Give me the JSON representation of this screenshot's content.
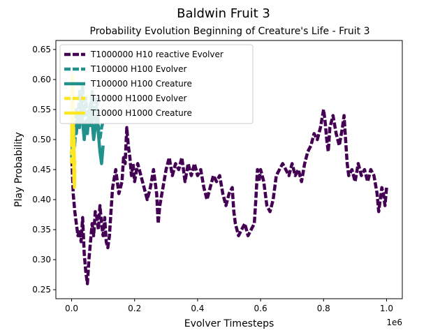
{
  "chart_data": {
    "type": "line",
    "suptitle": "Baldwin Fruit 3",
    "title": "Probability Evolution Beginning of Creature's Life - Fruit 3",
    "xlabel": "Evolver Timesteps",
    "ylabel": "Play Probability",
    "x_offset_label": "1e6",
    "xlim": [
      -0.05,
      1.05
    ],
    "ylim": [
      0.235,
      0.665
    ],
    "x_ticks": [
      0.0,
      0.2,
      0.4,
      0.6,
      0.8,
      1.0
    ],
    "x_tick_labels": [
      "0.0",
      "0.2",
      "0.4",
      "0.6",
      "0.8",
      "1.0"
    ],
    "y_ticks": [
      0.25,
      0.3,
      0.35,
      0.4,
      0.45,
      0.5,
      0.55,
      0.6,
      0.65
    ],
    "y_tick_labels": [
      "0.25",
      "0.30",
      "0.35",
      "0.40",
      "0.45",
      "0.50",
      "0.55",
      "0.60",
      "0.65"
    ],
    "grid": false,
    "legend_position": "upper-left",
    "series": [
      {
        "name": "T1000000 H10 reactive Evolver",
        "color": "#440154",
        "style": "dashed",
        "points": [
          [
            0.0,
            0.48
          ],
          [
            0.005,
            0.41
          ],
          [
            0.01,
            0.38
          ],
          [
            0.015,
            0.36
          ],
          [
            0.02,
            0.34
          ],
          [
            0.025,
            0.35
          ],
          [
            0.03,
            0.33
          ],
          [
            0.035,
            0.37
          ],
          [
            0.04,
            0.31
          ],
          [
            0.045,
            0.28
          ],
          [
            0.05,
            0.26
          ],
          [
            0.055,
            0.3
          ],
          [
            0.06,
            0.33
          ],
          [
            0.065,
            0.36
          ],
          [
            0.07,
            0.34
          ],
          [
            0.075,
            0.38
          ],
          [
            0.08,
            0.37
          ],
          [
            0.085,
            0.35
          ],
          [
            0.09,
            0.39
          ],
          [
            0.095,
            0.36
          ],
          [
            0.1,
            0.34
          ],
          [
            0.105,
            0.37
          ],
          [
            0.11,
            0.33
          ],
          [
            0.115,
            0.32
          ],
          [
            0.12,
            0.34
          ],
          [
            0.125,
            0.38
          ],
          [
            0.13,
            0.42
          ],
          [
            0.14,
            0.45
          ],
          [
            0.15,
            0.41
          ],
          [
            0.16,
            0.43
          ],
          [
            0.165,
            0.47
          ],
          [
            0.17,
            0.46
          ],
          [
            0.175,
            0.52
          ],
          [
            0.18,
            0.49
          ],
          [
            0.185,
            0.47
          ],
          [
            0.19,
            0.44
          ],
          [
            0.195,
            0.46
          ],
          [
            0.2,
            0.43
          ],
          [
            0.21,
            0.46
          ],
          [
            0.22,
            0.44
          ],
          [
            0.23,
            0.42
          ],
          [
            0.24,
            0.4
          ],
          [
            0.25,
            0.42
          ],
          [
            0.26,
            0.45
          ],
          [
            0.27,
            0.41
          ],
          [
            0.275,
            0.36
          ],
          [
            0.28,
            0.39
          ],
          [
            0.29,
            0.42
          ],
          [
            0.3,
            0.45
          ],
          [
            0.31,
            0.47
          ],
          [
            0.32,
            0.44
          ],
          [
            0.33,
            0.46
          ],
          [
            0.34,
            0.45
          ],
          [
            0.35,
            0.47
          ],
          [
            0.36,
            0.43
          ],
          [
            0.37,
            0.46
          ],
          [
            0.38,
            0.44
          ],
          [
            0.39,
            0.46
          ],
          [
            0.4,
            0.44
          ],
          [
            0.41,
            0.45
          ],
          [
            0.42,
            0.42
          ],
          [
            0.43,
            0.4
          ],
          [
            0.44,
            0.42
          ],
          [
            0.45,
            0.44
          ],
          [
            0.46,
            0.43
          ],
          [
            0.47,
            0.44
          ],
          [
            0.48,
            0.41
          ],
          [
            0.49,
            0.39
          ],
          [
            0.5,
            0.41
          ],
          [
            0.51,
            0.42
          ],
          [
            0.515,
            0.38
          ],
          [
            0.52,
            0.36
          ],
          [
            0.53,
            0.34
          ],
          [
            0.54,
            0.35
          ],
          [
            0.55,
            0.36
          ],
          [
            0.56,
            0.34
          ],
          [
            0.57,
            0.35
          ],
          [
            0.58,
            0.36
          ],
          [
            0.585,
            0.4
          ],
          [
            0.59,
            0.45
          ],
          [
            0.595,
            0.43
          ],
          [
            0.6,
            0.45
          ],
          [
            0.61,
            0.43
          ],
          [
            0.62,
            0.39
          ],
          [
            0.63,
            0.38
          ],
          [
            0.64,
            0.4
          ],
          [
            0.65,
            0.44
          ],
          [
            0.66,
            0.45
          ],
          [
            0.67,
            0.46
          ],
          [
            0.68,
            0.45
          ],
          [
            0.69,
            0.44
          ],
          [
            0.7,
            0.46
          ],
          [
            0.71,
            0.44
          ],
          [
            0.72,
            0.45
          ],
          [
            0.73,
            0.43
          ],
          [
            0.74,
            0.46
          ],
          [
            0.75,
            0.48
          ],
          [
            0.76,
            0.49
          ],
          [
            0.77,
            0.51
          ],
          [
            0.78,
            0.5
          ],
          [
            0.79,
            0.52
          ],
          [
            0.8,
            0.55
          ],
          [
            0.805,
            0.53
          ],
          [
            0.81,
            0.5
          ],
          [
            0.815,
            0.48
          ],
          [
            0.82,
            0.52
          ],
          [
            0.83,
            0.54
          ],
          [
            0.84,
            0.51
          ],
          [
            0.85,
            0.49
          ],
          [
            0.86,
            0.52
          ],
          [
            0.865,
            0.54
          ],
          [
            0.87,
            0.5
          ],
          [
            0.875,
            0.46
          ],
          [
            0.88,
            0.44
          ],
          [
            0.89,
            0.45
          ],
          [
            0.9,
            0.43
          ],
          [
            0.91,
            0.46
          ],
          [
            0.92,
            0.44
          ],
          [
            0.93,
            0.45
          ],
          [
            0.94,
            0.43
          ],
          [
            0.95,
            0.45
          ],
          [
            0.96,
            0.44
          ],
          [
            0.97,
            0.41
          ],
          [
            0.975,
            0.38
          ],
          [
            0.98,
            0.4
          ],
          [
            0.985,
            0.42
          ],
          [
            0.99,
            0.41
          ],
          [
            0.995,
            0.39
          ],
          [
            1.0,
            0.42
          ]
        ]
      },
      {
        "name": "T100000 H100 Evolver",
        "color": "#21918c",
        "style": "dashed",
        "points": [
          [
            0.0,
            0.47
          ],
          [
            0.005,
            0.52
          ],
          [
            0.01,
            0.49
          ],
          [
            0.015,
            0.55
          ],
          [
            0.02,
            0.53
          ],
          [
            0.025,
            0.58
          ],
          [
            0.03,
            0.56
          ],
          [
            0.035,
            0.59
          ],
          [
            0.04,
            0.54
          ],
          [
            0.045,
            0.57
          ],
          [
            0.05,
            0.53
          ],
          [
            0.055,
            0.55
          ],
          [
            0.06,
            0.52
          ],
          [
            0.065,
            0.58
          ],
          [
            0.07,
            0.55
          ],
          [
            0.075,
            0.53
          ],
          [
            0.08,
            0.57
          ],
          [
            0.085,
            0.52
          ],
          [
            0.09,
            0.5
          ],
          [
            0.095,
            0.52
          ],
          [
            0.1,
            0.53
          ]
        ]
      },
      {
        "name": "T100000 H100 Creature",
        "color": "#21918c",
        "style": "solid",
        "points": [
          [
            0.0,
            0.46
          ],
          [
            0.005,
            0.5
          ],
          [
            0.01,
            0.52
          ],
          [
            0.015,
            0.51
          ],
          [
            0.02,
            0.54
          ],
          [
            0.025,
            0.52
          ],
          [
            0.03,
            0.57
          ],
          [
            0.035,
            0.53
          ],
          [
            0.04,
            0.5
          ],
          [
            0.045,
            0.53
          ],
          [
            0.05,
            0.51
          ],
          [
            0.055,
            0.54
          ],
          [
            0.06,
            0.56
          ],
          [
            0.065,
            0.53
          ],
          [
            0.07,
            0.5
          ],
          [
            0.075,
            0.52
          ],
          [
            0.08,
            0.54
          ],
          [
            0.085,
            0.51
          ],
          [
            0.09,
            0.48
          ],
          [
            0.095,
            0.46
          ],
          [
            0.1,
            0.49
          ]
        ]
      },
      {
        "name": "T10000 H1000 Evolver",
        "color": "#fde725",
        "style": "dashed",
        "points": [
          [
            0.0,
            0.46
          ],
          [
            0.001,
            0.55
          ],
          [
            0.002,
            0.61
          ],
          [
            0.003,
            0.52
          ],
          [
            0.004,
            0.58
          ],
          [
            0.005,
            0.48
          ],
          [
            0.006,
            0.53
          ],
          [
            0.007,
            0.45
          ],
          [
            0.008,
            0.5
          ],
          [
            0.009,
            0.44
          ],
          [
            0.01,
            0.47
          ]
        ]
      },
      {
        "name": "T10000 H1000 Creature",
        "color": "#fde725",
        "style": "solid",
        "points": [
          [
            0.0,
            0.49
          ],
          [
            0.001,
            0.53
          ],
          [
            0.002,
            0.57
          ],
          [
            0.003,
            0.51
          ],
          [
            0.004,
            0.55
          ],
          [
            0.005,
            0.47
          ],
          [
            0.006,
            0.52
          ],
          [
            0.007,
            0.43
          ],
          [
            0.008,
            0.48
          ],
          [
            0.009,
            0.42
          ],
          [
            0.01,
            0.45
          ]
        ]
      }
    ]
  }
}
